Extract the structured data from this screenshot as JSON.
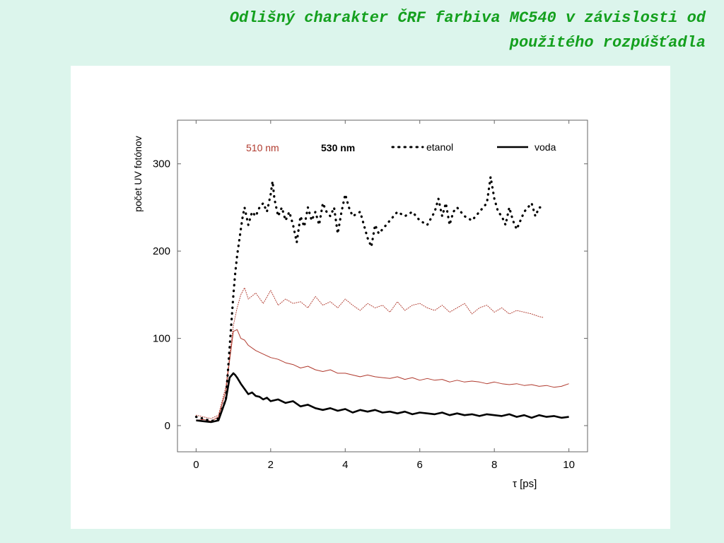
{
  "slide": {
    "title_line1": "Odlišný charakter ČRF farbiva MC540 v závislosti od",
    "title_line2": "použitého rozpúšťadla"
  },
  "colors": {
    "background": "#dcf5ec",
    "title": "#14a01e",
    "panel": "#ffffff",
    "series_510": "#b03a2e",
    "series_530": "#000000"
  },
  "chart_data": {
    "type": "line",
    "xlabel": "τ [ps]",
    "ylabel": "počet UV fotónov",
    "xlim": [
      -0.5,
      10.5
    ],
    "ylim": [
      -30,
      350
    ],
    "xticks": [
      0,
      2,
      4,
      6,
      8,
      10
    ],
    "yticks": [
      0,
      100,
      200,
      300
    ],
    "xtick_labels": [
      "0",
      "2",
      "4",
      "6",
      "8",
      "10"
    ],
    "ytick_labels": [
      "0",
      "100",
      "200",
      "300"
    ],
    "grid": false,
    "legend": {
      "position": "top",
      "label_510": "510 nm",
      "label_530": "530 nm",
      "label_etanol": "etanol",
      "label_voda": "voda"
    },
    "series": [
      {
        "wavelength": "510 nm",
        "solvent": "etanol",
        "style": "dotted",
        "x": [
          0,
          0.2,
          0.4,
          0.6,
          0.8,
          0.9,
          1.0,
          1.1,
          1.2,
          1.3,
          1.4,
          1.6,
          1.8,
          2.0,
          2.2,
          2.4,
          2.6,
          2.8,
          3.0,
          3.2,
          3.4,
          3.6,
          3.8,
          4.0,
          4.2,
          4.4,
          4.6,
          4.8,
          5.0,
          5.2,
          5.4,
          5.6,
          5.8,
          6.0,
          6.2,
          6.4,
          6.6,
          6.8,
          7.0,
          7.2,
          7.4,
          7.6,
          7.8,
          8.0,
          8.2,
          8.4,
          8.6,
          8.8,
          9.0,
          9.2,
          9.3
        ],
        "values": [
          12,
          10,
          8,
          12,
          45,
          80,
          115,
          135,
          150,
          158,
          145,
          152,
          140,
          155,
          138,
          145,
          140,
          142,
          135,
          148,
          138,
          142,
          135,
          145,
          138,
          132,
          140,
          135,
          138,
          130,
          142,
          132,
          138,
          140,
          135,
          132,
          138,
          130,
          135,
          140,
          128,
          135,
          138,
          130,
          135,
          128,
          132,
          130,
          128,
          125,
          124
        ]
      },
      {
        "wavelength": "510 nm",
        "solvent": "voda",
        "style": "solid",
        "x": [
          0,
          0.2,
          0.4,
          0.6,
          0.8,
          0.9,
          1.0,
          1.1,
          1.2,
          1.3,
          1.4,
          1.6,
          1.8,
          2.0,
          2.2,
          2.4,
          2.6,
          2.8,
          3.0,
          3.2,
          3.4,
          3.6,
          3.8,
          4.0,
          4.2,
          4.4,
          4.6,
          4.8,
          5.0,
          5.2,
          5.4,
          5.6,
          5.8,
          6.0,
          6.2,
          6.4,
          6.6,
          6.8,
          7.0,
          7.2,
          7.4,
          7.6,
          7.8,
          8.0,
          8.2,
          8.4,
          8.6,
          8.8,
          9.0,
          9.2,
          9.4,
          9.6,
          9.8,
          10.0
        ],
        "values": [
          6,
          7,
          5,
          10,
          40,
          75,
          108,
          110,
          100,
          98,
          92,
          86,
          82,
          78,
          76,
          72,
          70,
          66,
          68,
          64,
          62,
          64,
          60,
          60,
          58,
          56,
          58,
          56,
          55,
          54,
          56,
          53,
          55,
          52,
          54,
          52,
          53,
          50,
          52,
          50,
          51,
          50,
          48,
          50,
          48,
          47,
          48,
          46,
          47,
          45,
          46,
          44,
          45,
          48
        ]
      },
      {
        "wavelength": "530 nm",
        "solvent": "etanol",
        "style": "dotted",
        "x": [
          0,
          0.2,
          0.4,
          0.6,
          0.8,
          0.9,
          1.0,
          1.05,
          1.1,
          1.15,
          1.2,
          1.25,
          1.3,
          1.4,
          1.5,
          1.6,
          1.7,
          1.8,
          1.9,
          2.0,
          2.05,
          2.1,
          2.2,
          2.3,
          2.4,
          2.5,
          2.6,
          2.7,
          2.8,
          2.9,
          3.0,
          3.1,
          3.2,
          3.3,
          3.4,
          3.5,
          3.6,
          3.7,
          3.8,
          3.9,
          4.0,
          4.1,
          4.2,
          4.4,
          4.6,
          4.7,
          4.8,
          4.9,
          5.0,
          5.2,
          5.4,
          5.6,
          5.8,
          6.0,
          6.2,
          6.4,
          6.5,
          6.6,
          6.7,
          6.8,
          6.9,
          7.0,
          7.2,
          7.4,
          7.6,
          7.8,
          7.9,
          8.0,
          8.1,
          8.2,
          8.3,
          8.4,
          8.5,
          8.6,
          8.8,
          9.0,
          9.1,
          9.2,
          9.3
        ],
        "values": [
          10,
          8,
          5,
          8,
          30,
          90,
          150,
          175,
          195,
          210,
          225,
          240,
          250,
          230,
          245,
          240,
          250,
          255,
          245,
          265,
          280,
          260,
          240,
          250,
          235,
          245,
          230,
          210,
          240,
          228,
          250,
          235,
          245,
          230,
          255,
          245,
          240,
          250,
          220,
          245,
          265,
          250,
          240,
          245,
          215,
          205,
          230,
          220,
          225,
          235,
          245,
          240,
          245,
          235,
          230,
          245,
          260,
          240,
          255,
          230,
          245,
          250,
          240,
          235,
          245,
          255,
          285,
          260,
          245,
          240,
          230,
          250,
          235,
          225,
          245,
          255,
          240,
          250,
          250
        ]
      },
      {
        "wavelength": "530 nm",
        "solvent": "voda",
        "style": "solid",
        "x": [
          0,
          0.2,
          0.4,
          0.6,
          0.8,
          0.9,
          1.0,
          1.05,
          1.1,
          1.2,
          1.3,
          1.4,
          1.5,
          1.6,
          1.7,
          1.8,
          1.9,
          2.0,
          2.2,
          2.4,
          2.6,
          2.8,
          3.0,
          3.2,
          3.4,
          3.6,
          3.8,
          4.0,
          4.2,
          4.4,
          4.6,
          4.8,
          5.0,
          5.2,
          5.4,
          5.6,
          5.8,
          6.0,
          6.2,
          6.4,
          6.6,
          6.8,
          7.0,
          7.2,
          7.4,
          7.6,
          7.8,
          8.0,
          8.2,
          8.4,
          8.6,
          8.8,
          9.0,
          9.2,
          9.4,
          9.6,
          9.8,
          10.0
        ],
        "values": [
          6,
          5,
          4,
          6,
          30,
          55,
          60,
          58,
          55,
          48,
          42,
          36,
          38,
          34,
          33,
          30,
          32,
          28,
          30,
          26,
          28,
          22,
          24,
          20,
          18,
          20,
          17,
          19,
          15,
          18,
          16,
          18,
          15,
          16,
          14,
          16,
          13,
          15,
          14,
          13,
          15,
          12,
          14,
          12,
          13,
          11,
          13,
          12,
          11,
          13,
          10,
          12,
          9,
          12,
          10,
          11,
          9,
          10
        ]
      }
    ]
  }
}
